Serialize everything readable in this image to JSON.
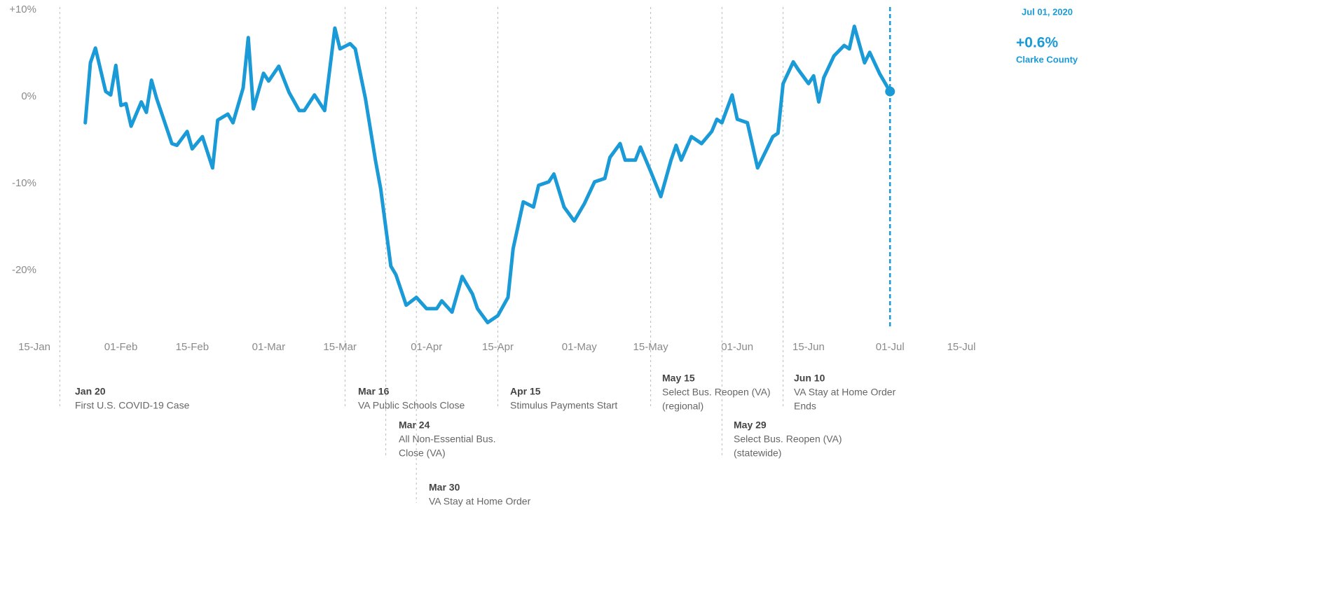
{
  "chart_data": {
    "type": "line",
    "x": [
      "2020-01-25",
      "2020-01-26",
      "2020-01-27",
      "2020-01-28",
      "2020-01-29",
      "2020-01-30",
      "2020-01-31",
      "2020-02-01",
      "2020-02-02",
      "2020-02-03",
      "2020-02-05",
      "2020-02-06",
      "2020-02-07",
      "2020-02-08",
      "2020-02-11",
      "2020-02-12",
      "2020-02-14",
      "2020-02-15",
      "2020-02-17",
      "2020-02-19",
      "2020-02-20",
      "2020-02-22",
      "2020-02-23",
      "2020-02-25",
      "2020-02-26",
      "2020-02-27",
      "2020-02-29",
      "2020-03-01",
      "2020-03-03",
      "2020-03-05",
      "2020-03-07",
      "2020-03-08",
      "2020-03-10",
      "2020-03-12",
      "2020-03-14",
      "2020-03-15",
      "2020-03-17",
      "2020-03-18",
      "2020-03-20",
      "2020-03-22",
      "2020-03-23",
      "2020-03-25",
      "2020-03-26",
      "2020-03-28",
      "2020-03-30",
      "2020-04-01",
      "2020-04-03",
      "2020-04-04",
      "2020-04-06",
      "2020-04-08",
      "2020-04-10",
      "2020-04-11",
      "2020-04-13",
      "2020-04-15",
      "2020-04-17",
      "2020-04-18",
      "2020-04-20",
      "2020-04-22",
      "2020-04-23",
      "2020-04-25",
      "2020-04-26",
      "2020-04-28",
      "2020-04-30",
      "2020-05-02",
      "2020-05-04",
      "2020-05-06",
      "2020-05-07",
      "2020-05-09",
      "2020-05-10",
      "2020-05-12",
      "2020-05-13",
      "2020-05-15",
      "2020-05-17",
      "2020-05-19",
      "2020-05-20",
      "2020-05-21",
      "2020-05-23",
      "2020-05-25",
      "2020-05-27",
      "2020-05-28",
      "2020-05-29",
      "2020-05-31",
      "2020-06-01",
      "2020-06-03",
      "2020-06-05",
      "2020-06-06",
      "2020-06-08",
      "2020-06-09",
      "2020-06-10",
      "2020-06-12",
      "2020-06-13",
      "2020-06-15",
      "2020-06-16",
      "2020-06-17",
      "2020-06-18",
      "2020-06-20",
      "2020-06-22",
      "2020-06-23",
      "2020-06-24",
      "2020-06-26",
      "2020-06-27",
      "2020-06-29",
      "2020-07-01"
    ],
    "series": [
      {
        "name": "Clarke County",
        "color": "#1a9ad6",
        "values": [
          -3.0,
          3.9,
          5.6,
          3.1,
          0.6,
          0.2,
          3.6,
          -1.0,
          -0.8,
          -3.4,
          -0.6,
          -1.8,
          1.9,
          -0.2,
          -5.4,
          -5.6,
          -4.0,
          -6.0,
          -4.6,
          -8.2,
          -2.7,
          -2.0,
          -3.0,
          1.0,
          6.8,
          -1.4,
          2.7,
          1.8,
          3.5,
          0.5,
          -1.6,
          -1.6,
          0.2,
          -1.6,
          7.9,
          5.5,
          6.1,
          5.5,
          -0.2,
          -7.4,
          -10.6,
          -19.5,
          -20.5,
          -24.0,
          -23.1,
          -24.4,
          -24.4,
          -23.5,
          -24.8,
          -20.7,
          -22.7,
          -24.4,
          -26.0,
          -25.2,
          -23.1,
          -17.5,
          -12.1,
          -12.7,
          -10.2,
          -9.8,
          -8.9,
          -12.7,
          -14.3,
          -12.3,
          -9.8,
          -9.4,
          -7.0,
          -5.4,
          -7.3,
          -7.3,
          -5.8,
          -8.6,
          -11.5,
          -7.3,
          -5.6,
          -7.3,
          -4.6,
          -5.4,
          -4.0,
          -2.6,
          -3.0,
          0.2,
          -2.6,
          -3.0,
          -8.2,
          -7.0,
          -4.6,
          -4.2,
          1.5,
          4.0,
          3.1,
          1.5,
          2.4,
          -0.6,
          2.2,
          4.7,
          5.9,
          5.5,
          8.1,
          3.9,
          5.1,
          2.6,
          0.6
        ]
      }
    ],
    "xlim": [
      "2020-01-15",
      "2020-07-15"
    ],
    "xticks": [
      {
        "value": "2020-01-15",
        "label": "15-Jan"
      },
      {
        "value": "2020-02-01",
        "label": "01-Feb"
      },
      {
        "value": "2020-02-15",
        "label": "15-Feb"
      },
      {
        "value": "2020-03-01",
        "label": "01-Mar"
      },
      {
        "value": "2020-03-15",
        "label": "15-Mar"
      },
      {
        "value": "2020-04-01",
        "label": "01-Apr"
      },
      {
        "value": "2020-04-15",
        "label": "15-Apr"
      },
      {
        "value": "2020-05-01",
        "label": "01-May"
      },
      {
        "value": "2020-05-15",
        "label": "15-May"
      },
      {
        "value": "2020-06-01",
        "label": "01-Jun"
      },
      {
        "value": "2020-06-15",
        "label": "15-Jun"
      },
      {
        "value": "2020-07-01",
        "label": "01-Jul"
      },
      {
        "value": "2020-07-15",
        "label": "15-Jul"
      }
    ],
    "ylim": [
      -27,
      10
    ],
    "yticks": [
      {
        "value": 10,
        "label": "+10%"
      },
      {
        "value": 0,
        "label": "0%"
      },
      {
        "value": -10,
        "label": "-10%"
      },
      {
        "value": -20,
        "label": "-20%"
      }
    ],
    "highlight": {
      "x": "2020-07-01",
      "date_label": "Jul 01, 2020",
      "value": 0.6,
      "value_label": "+0.6%"
    },
    "events": [
      {
        "date": "2020-01-20",
        "label": "Jan 20",
        "lines": [
          "First U.S. COVID-19 Case"
        ]
      },
      {
        "date": "2020-03-16",
        "label": "Mar 16",
        "lines": [
          "VA Public Schools Close"
        ]
      },
      {
        "date": "2020-03-24",
        "label": "Mar 24",
        "lines": [
          "All Non-Essential Bus.",
          "Close (VA)"
        ]
      },
      {
        "date": "2020-03-30",
        "label": "Mar 30",
        "lines": [
          "VA Stay at Home Order"
        ]
      },
      {
        "date": "2020-04-15",
        "label": "Apr 15",
        "lines": [
          "Stimulus Payments Start"
        ]
      },
      {
        "date": "2020-05-15",
        "label": "May 15",
        "lines": [
          "Select Bus. Reopen (VA)",
          "(regional)"
        ]
      },
      {
        "date": "2020-05-29",
        "label": "May 29",
        "lines": [
          "Select Bus. Reopen (VA)",
          "(statewide)"
        ]
      },
      {
        "date": "2020-06-10",
        "label": "Jun 10",
        "lines": [
          "VA Stay at Home Order",
          "Ends"
        ]
      }
    ]
  }
}
